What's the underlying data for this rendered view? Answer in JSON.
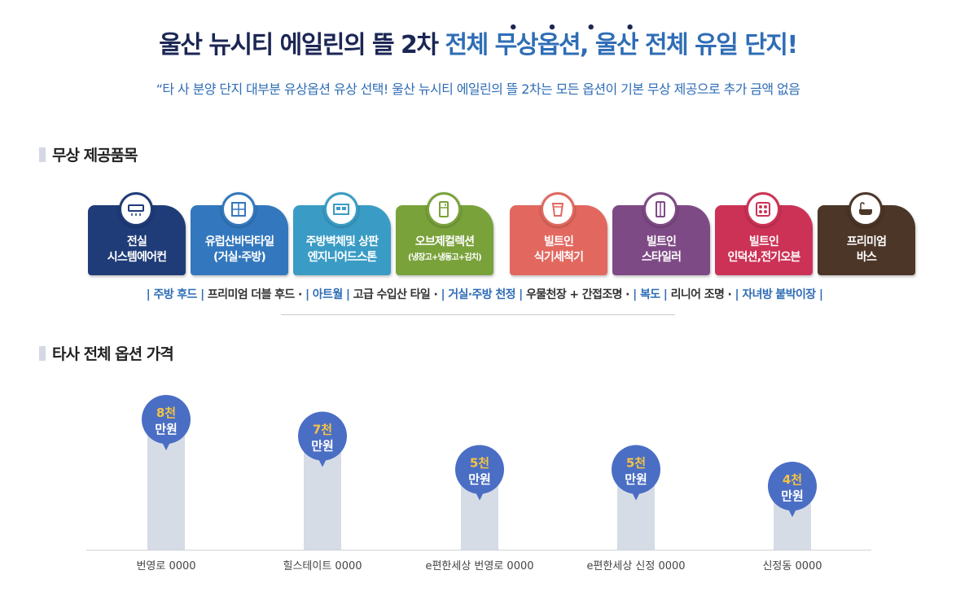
{
  "header": {
    "title_dark": "울산 뉴시티 에일린의 뜰 2차",
    "title_blue": "전체 무상옵션, 울산 전체 유일 단지!",
    "emphasis_dots": "• • • •",
    "subtitle": "“타 사 분양 단지 대부분 유상옵션 유상 선택!  울산 뉴시티 에일린의 뜰 2차는 모든 옵션이 기본 무상 제공으로 추가 금액 없음"
  },
  "section_free": {
    "title": "무상 제공품목",
    "cards": [
      {
        "line1": "전실",
        "line2": "시스템에어컨",
        "color": "#1f3c78",
        "icon": "air-conditioner-icon"
      },
      {
        "line1": "유럽산바닥타일",
        "line2": "(거실·주방)",
        "color": "#3378be",
        "icon": "floor-tile-icon"
      },
      {
        "line1": "주방벽체및 상판",
        "line2": "엔지니어드스톤",
        "color": "#3a9cc5",
        "icon": "kitchen-wall-icon"
      },
      {
        "line1": "오브제컬렉션",
        "line2": "(냉장고+냉동고+김치)",
        "color": "#7aa23b",
        "icon": "refrigerator-icon"
      },
      {
        "line1": "빌트인",
        "line2": "식기세척기",
        "color": "#e2685f",
        "icon": "dishwasher-icon"
      },
      {
        "line1": "빌트인",
        "line2": "스타일러",
        "color": "#7e4a85",
        "icon": "styler-icon"
      },
      {
        "line1": "빌트인",
        "line2": "인덕션,전기오븐",
        "color": "#cc3256",
        "icon": "induction-icon"
      },
      {
        "line1": "프리미엄",
        "line2": "바스",
        "color": "#4b3628",
        "icon": "bathtub-icon"
      }
    ],
    "tags": [
      {
        "text": "| 주방 후드 |",
        "blue": true
      },
      {
        "text": " 프리미엄 더블 후드  · ",
        "blue": false
      },
      {
        "text": "| 아트월 |",
        "blue": true
      },
      {
        "text": " 고급 수입산 타일  · ",
        "blue": false
      },
      {
        "text": "| 거실·주방 천정 |",
        "blue": true
      },
      {
        "text": " 우물천장  + 간접조명  · ",
        "blue": false
      },
      {
        "text": "| 복도 |",
        "blue": true
      },
      {
        "text": " 리니어 조명 · ",
        "blue": false
      },
      {
        "text": "| 자녀방 붙박이장 |",
        "blue": true
      }
    ]
  },
  "section_price": {
    "title": "타사 전체 옵션 가격"
  },
  "chart_data": {
    "type": "bar",
    "title": "타사 전체 옵션 가격",
    "categories": [
      "번영로 0000",
      "힐스테이트 0000",
      "e편한세상 번영로 0000",
      "e편한세상 신정 0000",
      "신정동 0000"
    ],
    "values": [
      8000,
      7000,
      5000,
      5000,
      4000
    ],
    "unit": "만원",
    "value_labels": [
      {
        "top": "8천",
        "bottom": "만원"
      },
      {
        "top": "7천",
        "bottom": "만원"
      },
      {
        "top": "5천",
        "bottom": "만원"
      },
      {
        "top": "5천",
        "bottom": "만원"
      },
      {
        "top": "4천",
        "bottom": "만원"
      }
    ],
    "ylim": [
      0,
      10000
    ],
    "bar_color": "#d6dce6",
    "pin_color": "#4a6ec4",
    "grid": false
  }
}
